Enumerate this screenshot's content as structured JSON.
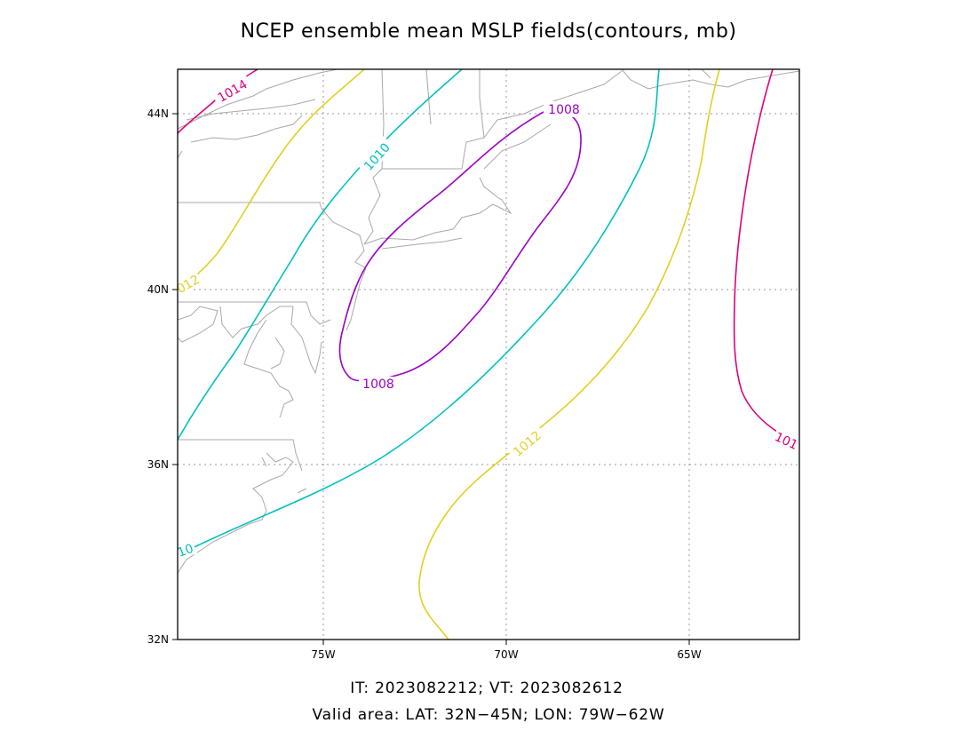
{
  "title": "NCEP ensemble mean MSLP fields(contours, mb)",
  "footer": {
    "line1": "IT: 2023082212; VT: 2023082612",
    "line2": "Valid area: LAT: 32N−45N; LON: 79W−62W"
  },
  "axes": {
    "lat_ticks": [
      {
        "value": 32,
        "label": "32N"
      },
      {
        "value": 36,
        "label": "36N"
      },
      {
        "value": 40,
        "label": "40N"
      },
      {
        "value": 44,
        "label": "44N"
      }
    ],
    "lon_ticks": [
      {
        "value": -75,
        "label": "75W"
      },
      {
        "value": -70,
        "label": "70W"
      },
      {
        "value": -65,
        "label": "65W"
      }
    ],
    "lat_range": [
      32,
      45
    ],
    "lon_range": [
      -79,
      -62
    ],
    "grid": true
  },
  "colors": {
    "c1008": "#9b00c8",
    "c1010": "#00c0c0",
    "c1012": "#e0d020",
    "c1014": "#e0007a",
    "coast": "#a8a8a8"
  },
  "contours": [
    {
      "level": 1008,
      "color_key": "c1008",
      "labels": [
        "1008",
        "1008"
      ]
    },
    {
      "level": 1010,
      "color_key": "c1010",
      "labels": [
        "1010",
        "10"
      ]
    },
    {
      "level": 1012,
      "color_key": "c1012",
      "labels": [
        "012",
        "1012"
      ]
    },
    {
      "level": 1014,
      "color_key": "c1014",
      "labels": [
        "1014",
        "101"
      ]
    }
  ]
}
